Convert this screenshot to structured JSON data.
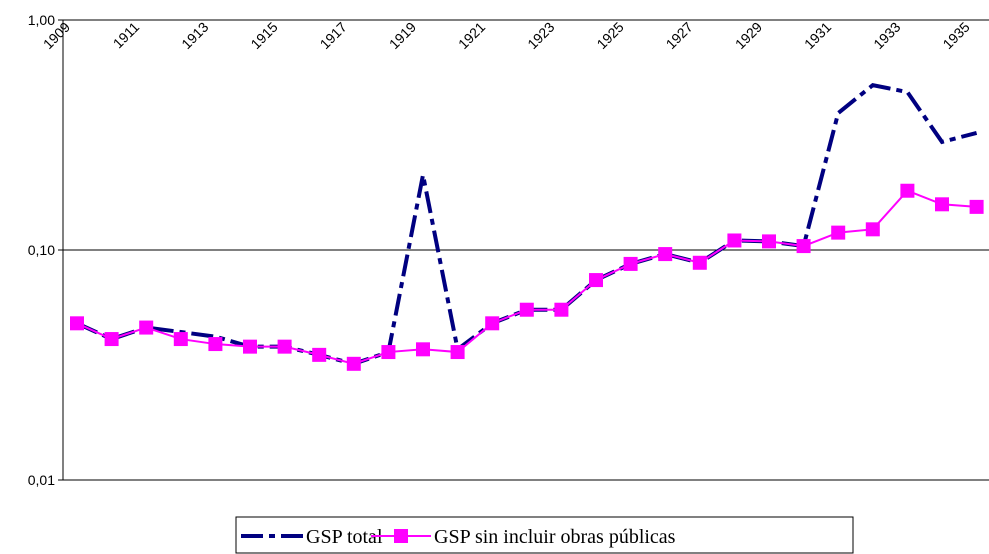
{
  "chart_data": {
    "type": "line",
    "categories": [
      "1909",
      null,
      "1911",
      null,
      "1913",
      null,
      "1915",
      null,
      "1917",
      null,
      "1919",
      null,
      "1921",
      null,
      "1923",
      null,
      "1925",
      null,
      "1927",
      null,
      "1929",
      null,
      "1931",
      null,
      "1933",
      null,
      "1935"
    ],
    "series": [
      {
        "name": "GSP total",
        "color": "#000080",
        "values": [
          0.048,
          0.041,
          0.046,
          0.044,
          0.042,
          0.038,
          0.038,
          0.035,
          0.032,
          0.036,
          0.212,
          0.037,
          0.048,
          0.055,
          0.055,
          0.074,
          0.087,
          0.096,
          0.088,
          0.11,
          0.109,
          0.104,
          0.394,
          0.521,
          0.486,
          0.295,
          0.323
        ]
      },
      {
        "name": "GSP sin incluir obras públicas",
        "color": "#ff00ff",
        "values": [
          0.048,
          0.041,
          0.046,
          0.041,
          0.039,
          0.038,
          0.038,
          0.035,
          0.032,
          0.036,
          0.037,
          0.036,
          0.048,
          0.055,
          0.055,
          0.074,
          0.087,
          0.096,
          0.088,
          0.11,
          0.109,
          0.104,
          0.119,
          0.123,
          0.181,
          0.158,
          0.154
        ]
      }
    ],
    "ylim": [
      0.01,
      1
    ],
    "yticks": [
      {
        "value": 0.01,
        "label": "0,01"
      },
      {
        "value": 0.1,
        "label": "0,10"
      },
      {
        "value": 1,
        "label": "1,00"
      }
    ],
    "log_scale": true,
    "grid": true
  }
}
